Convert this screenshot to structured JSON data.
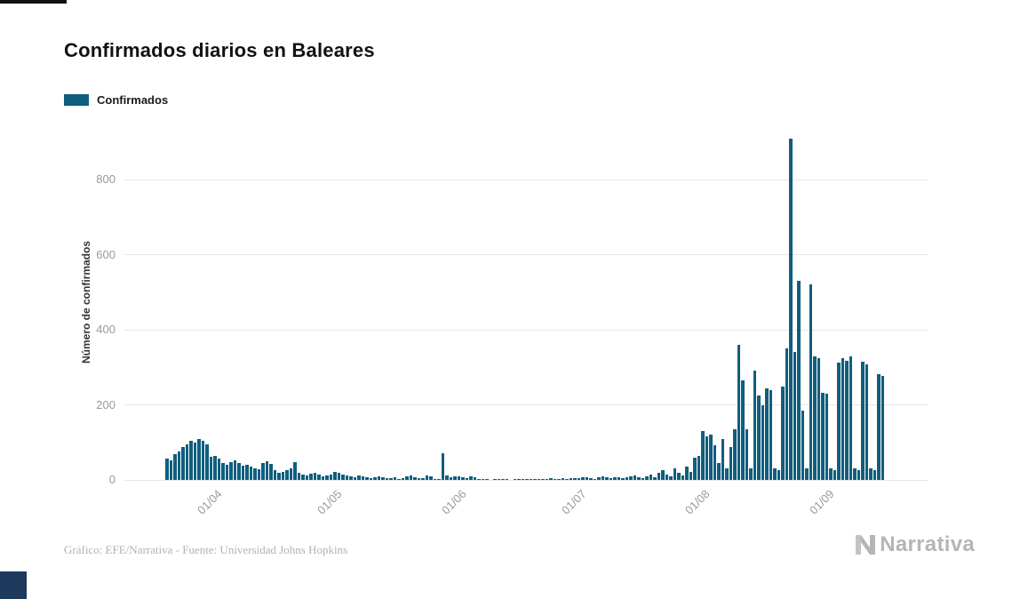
{
  "page": {
    "title": "Confirmados diarios en Baleares"
  },
  "legend": {
    "label": "Confirmados",
    "color": "#105e7e"
  },
  "footer": {
    "credit": "Gráfico: EFE/Narrativa - Fuente: Universidad Johns Hopkins",
    "brand": "Narrativa"
  },
  "chart_data": {
    "type": "bar",
    "title": "Confirmados diarios en Baleares",
    "xlabel": "",
    "ylabel": "Número de confirmados",
    "ylim": [
      0,
      935
    ],
    "yticks": [
      0,
      200,
      400,
      600,
      800
    ],
    "grid": true,
    "legend_position": "top-left",
    "bar_color": "#105e7e",
    "x_start_date": "20/03/2020",
    "x_frequency": "daily",
    "xticks": [
      {
        "label": "01/04",
        "index": 12
      },
      {
        "label": "01/05",
        "index": 42
      },
      {
        "label": "01/06",
        "index": 73
      },
      {
        "label": "01/07",
        "index": 103
      },
      {
        "label": "01/08",
        "index": 134
      },
      {
        "label": "01/09",
        "index": 165
      }
    ],
    "series": [
      {
        "name": "Confirmados",
        "values": [
          58,
          52,
          68,
          75,
          88,
          95,
          105,
          100,
          108,
          105,
          95,
          62,
          65,
          58,
          45,
          40,
          48,
          52,
          44,
          38,
          40,
          35,
          30,
          28,
          45,
          50,
          42,
          25,
          20,
          22,
          26,
          30,
          48,
          20,
          15,
          12,
          16,
          20,
          14,
          10,
          12,
          15,
          22,
          18,
          15,
          12,
          10,
          8,
          12,
          10,
          6,
          5,
          8,
          10,
          6,
          4,
          5,
          8,
          3,
          4,
          10,
          12,
          8,
          5,
          4,
          12,
          10,
          3,
          2,
          70,
          12,
          8,
          10,
          10,
          8,
          5,
          9,
          8,
          3,
          1,
          1,
          0,
          1,
          2,
          1,
          1,
          0,
          1,
          2,
          1,
          2,
          3,
          2,
          1,
          2,
          3,
          4,
          3,
          2,
          4,
          3,
          4,
          5,
          4,
          6,
          8,
          5,
          3,
          6,
          9,
          7,
          5,
          8,
          6,
          4,
          7,
          9,
          12,
          8,
          5,
          10,
          14,
          8,
          20,
          25,
          15,
          10,
          30,
          20,
          12,
          35,
          22,
          60,
          65,
          130,
          115,
          120,
          92,
          45,
          110,
          30,
          88,
          135,
          360,
          265,
          135,
          30,
          290,
          225,
          200,
          245,
          240,
          30,
          25,
          248,
          350,
          910,
          340,
          530,
          185,
          30,
          520,
          330,
          325,
          232,
          230,
          30,
          25,
          312,
          325,
          318,
          330,
          30,
          25,
          315,
          308,
          30,
          25,
          282,
          278,
          0
        ]
      }
    ]
  }
}
